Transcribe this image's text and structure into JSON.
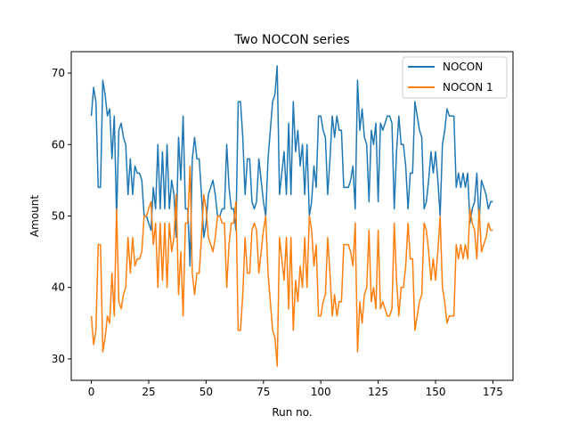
{
  "chart_data": {
    "type": "line",
    "title": "Two NOCON series",
    "xlabel": "Run no.",
    "ylabel": "Amount",
    "xlim": [
      -8.75,
      183.75
    ],
    "ylim": [
      27,
      73
    ],
    "xticks": [
      0,
      25,
      50,
      75,
      100,
      125,
      150,
      175
    ],
    "yticks": [
      30,
      40,
      50,
      60,
      70
    ],
    "grid": false,
    "legend_position": "top-right",
    "series": [
      {
        "name": "NOCON",
        "color": "#1f77b4",
        "values": [
          64,
          68,
          66,
          54,
          54,
          69,
          67,
          64,
          65,
          58,
          64,
          50,
          62,
          63,
          61,
          60,
          53,
          58,
          53,
          57,
          56,
          56,
          55,
          50,
          50,
          49,
          48,
          54,
          51,
          60,
          51,
          59,
          51,
          60,
          51,
          55,
          53,
          47,
          61,
          55,
          64,
          51,
          51,
          43,
          58,
          61,
          58,
          58,
          53,
          47,
          49,
          53,
          54,
          55,
          53,
          50,
          50,
          51,
          51,
          60,
          54,
          51,
          51,
          48,
          66,
          66,
          61,
          53,
          58,
          58,
          52,
          51,
          52,
          58,
          55,
          52,
          50,
          58,
          62,
          66,
          67,
          71,
          53,
          56,
          59,
          53,
          63,
          53,
          66,
          59,
          62,
          57,
          60,
          53,
          60,
          50,
          52,
          57,
          54,
          64,
          64,
          62,
          61,
          53,
          58,
          64,
          61,
          64,
          62,
          62,
          54,
          54,
          54,
          55,
          57,
          51,
          69,
          62,
          65,
          61,
          60,
          52,
          62,
          60,
          63,
          52,
          63,
          62,
          63,
          64,
          64,
          63,
          51,
          59,
          64,
          60,
          60,
          57,
          51,
          56,
          56,
          66,
          64,
          62,
          61,
          51,
          52,
          55,
          59,
          56,
          59,
          55,
          50,
          60,
          62,
          65,
          64,
          64,
          64,
          54,
          56,
          54,
          56,
          54,
          56,
          49,
          51,
          52,
          56,
          49,
          55,
          54,
          53,
          51,
          52,
          52
        ],
        "_skip": true
      },
      {
        "name": "NOCON 1",
        "color": "#ff7f0e",
        "values": [
          36,
          32,
          34,
          46,
          46,
          31,
          33,
          36,
          35,
          42,
          36,
          51,
          38,
          37,
          39,
          40,
          47,
          42,
          47,
          43,
          44,
          44,
          45,
          50,
          50,
          51,
          52,
          46,
          49,
          40,
          49,
          41,
          49,
          40,
          49,
          45,
          47,
          53,
          39,
          45,
          36,
          49,
          49,
          57,
          42,
          39,
          42,
          42,
          47,
          53,
          51,
          47,
          46,
          45,
          47,
          50,
          50,
          49,
          49,
          40,
          46,
          49,
          49,
          52,
          34,
          34,
          39,
          47,
          42,
          42,
          48,
          49,
          48,
          42,
          45,
          48,
          50,
          42,
          38,
          34,
          33,
          29,
          47,
          44,
          41,
          47,
          37,
          47,
          34,
          41,
          38,
          43,
          40,
          47,
          40,
          50,
          48,
          43,
          46,
          36,
          36,
          38,
          39,
          47,
          42,
          36,
          39,
          36,
          38,
          38,
          46,
          46,
          46,
          45,
          43,
          49,
          31,
          38,
          35,
          39,
          40,
          48,
          38,
          40,
          37,
          48,
          37,
          38,
          37,
          36,
          36,
          37,
          49,
          41,
          36,
          40,
          40,
          43,
          49,
          44,
          44,
          34,
          36,
          38,
          39,
          49,
          48,
          45,
          41,
          44,
          41,
          45,
          50,
          40,
          38,
          35,
          36,
          36,
          36,
          46,
          44,
          46,
          44,
          46,
          44,
          51,
          49,
          48,
          44,
          51,
          45,
          46,
          47,
          49,
          48,
          48
        ]
      }
    ]
  }
}
